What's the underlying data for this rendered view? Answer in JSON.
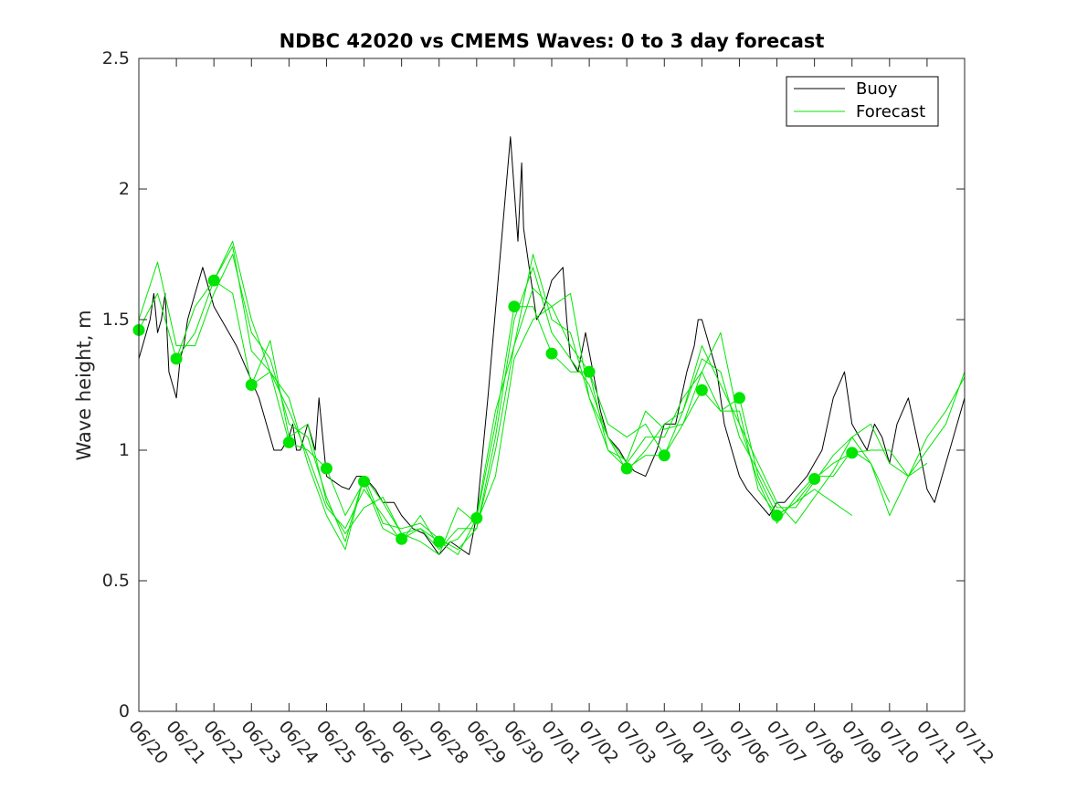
{
  "chart_data": {
    "type": "line",
    "title": "NDBC 42020 vs CMEMS Waves: 0 to 3 day forecast",
    "xlabel": "",
    "ylabel": "Wave height, m",
    "xlim": [
      "06/20",
      "07/12"
    ],
    "ylim": [
      0,
      2.5
    ],
    "grid": false,
    "legend_position": "top-right",
    "x_ticks": [
      "06/20",
      "06/21",
      "06/22",
      "06/23",
      "06/24",
      "06/25",
      "06/26",
      "06/27",
      "06/28",
      "06/29",
      "06/30",
      "07/01",
      "07/02",
      "07/03",
      "07/04",
      "07/05",
      "07/06",
      "07/07",
      "07/08",
      "07/09",
      "07/10",
      "07/11",
      "07/12"
    ],
    "y_ticks": [
      "0",
      "0.5",
      "1",
      "1.5",
      "2",
      "2.5"
    ],
    "colors": {
      "buoy": "#000000",
      "forecast": "#00e600"
    },
    "series": [
      {
        "name": "Buoy",
        "x": [
          0,
          0.3,
          0.4,
          0.5,
          0.6,
          0.7,
          0.8,
          0.9,
          1.0,
          1.1,
          1.2,
          1.3,
          1.5,
          1.7,
          2.0,
          2.6,
          2.9,
          3.2,
          3.4,
          3.6,
          3.8,
          4.0,
          4.1,
          4.2,
          4.3,
          4.5,
          4.7,
          4.8,
          5.0,
          5.2,
          5.4,
          5.6,
          5.8,
          6.0,
          6.3,
          6.5,
          6.8,
          7.0,
          7.3,
          7.6,
          8.0,
          8.3,
          8.8,
          9.0,
          9.3,
          9.6,
          9.9,
          10.1,
          10.2,
          10.25,
          10.3,
          10.4,
          10.5,
          10.6,
          10.8,
          11.0,
          11.3,
          11.4,
          11.5,
          11.7,
          11.9,
          12.1,
          12.3,
          12.5,
          12.8,
          13.0,
          13.2,
          13.5,
          13.8,
          14.0,
          14.3,
          14.6,
          14.8,
          14.9,
          15.0,
          15.2,
          15.4,
          15.5,
          15.6,
          15.8,
          16.0,
          16.2,
          16.5,
          16.8,
          17.0,
          17.2,
          17.5,
          17.8,
          18.0,
          18.2,
          18.5,
          18.8,
          19.0,
          19.2,
          19.4,
          19.6,
          19.8,
          20.0,
          20.2,
          20.5,
          20.8,
          21.0,
          21.2,
          21.4,
          21.6,
          21.8,
          22.0
        ],
        "y": [
          1.35,
          1.5,
          1.6,
          1.45,
          1.5,
          1.6,
          1.3,
          1.25,
          1.2,
          1.35,
          1.4,
          1.5,
          1.6,
          1.7,
          1.55,
          1.4,
          1.3,
          1.2,
          1.1,
          1.0,
          1.0,
          1.05,
          1.1,
          1.0,
          1.0,
          1.1,
          1.0,
          1.2,
          0.9,
          0.88,
          0.86,
          0.85,
          0.9,
          0.9,
          0.85,
          0.8,
          0.8,
          0.75,
          0.7,
          0.68,
          0.6,
          0.65,
          0.6,
          0.75,
          1.2,
          1.7,
          2.2,
          1.8,
          2.1,
          1.85,
          1.8,
          1.7,
          1.6,
          1.5,
          1.55,
          1.65,
          1.7,
          1.5,
          1.35,
          1.3,
          1.45,
          1.3,
          1.15,
          1.05,
          1.0,
          0.95,
          0.92,
          0.9,
          1.0,
          1.1,
          1.1,
          1.3,
          1.4,
          1.5,
          1.5,
          1.4,
          1.3,
          1.2,
          1.1,
          1.0,
          0.9,
          0.85,
          0.8,
          0.75,
          0.8,
          0.8,
          0.85,
          0.9,
          0.95,
          1.0,
          1.2,
          1.3,
          1.1,
          1.05,
          1.0,
          1.1,
          1.05,
          0.95,
          1.1,
          1.2,
          1.0,
          0.85,
          0.8,
          0.9,
          1.0,
          1.1,
          1.2
        ]
      },
      {
        "name": "Forecast",
        "x": [
          0,
          0.5,
          1,
          1.5,
          2,
          2.5,
          3,
          3.5,
          4,
          4.5,
          5,
          5.5,
          6,
          6.5,
          7,
          7.5,
          8,
          8.5,
          9,
          9.5,
          10,
          10.5,
          11,
          11.5,
          12,
          12.5,
          13,
          13.5,
          14,
          14.5,
          15,
          15.5,
          16,
          16.5,
          17,
          17.5,
          18,
          18.5,
          19,
          19.5,
          20,
          20.5,
          21,
          21.5,
          22
        ],
        "y": [
          1.46,
          1.6,
          1.35,
          1.45,
          1.65,
          1.6,
          1.25,
          1.3,
          1.03,
          1.0,
          0.93,
          0.75,
          0.88,
          0.7,
          0.66,
          0.7,
          0.65,
          0.6,
          0.74,
          1.1,
          1.55,
          1.55,
          1.37,
          1.3,
          1.3,
          1.0,
          0.93,
          0.98,
          0.98,
          1.1,
          1.23,
          1.15,
          1.2,
          0.9,
          0.75,
          0.8,
          0.89,
          0.95,
          0.99,
          1.0,
          1.0,
          0.9,
          1.0,
          1.1,
          1.3
        ]
      },
      {
        "name": "",
        "x": [
          0,
          0.5,
          1,
          1.5,
          2,
          2.5,
          3,
          3.5,
          4,
          4.5,
          5,
          5.5,
          6,
          6.5,
          7,
          7.5,
          8,
          8.5,
          9,
          9.5,
          10,
          10.5,
          11,
          11.5,
          12,
          12.5,
          13,
          13.5,
          14,
          14.5,
          15,
          15.5,
          16,
          16.5,
          17,
          17.5,
          18,
          18.5,
          19
        ],
        "y": [
          1.5,
          1.72,
          1.4,
          1.4,
          1.6,
          1.75,
          1.45,
          1.35,
          1.1,
          1.05,
          0.82,
          0.65,
          0.9,
          0.72,
          0.7,
          0.72,
          0.66,
          0.62,
          0.7,
          1.05,
          1.5,
          1.7,
          1.45,
          1.35,
          1.25,
          1.05,
          0.95,
          1.05,
          1.05,
          1.2,
          1.3,
          1.15,
          1.15,
          0.85,
          0.75,
          0.8,
          0.85,
          0.8,
          0.75
        ]
      },
      {
        "name": "",
        "x": [
          1,
          1.5,
          2,
          2.5,
          3,
          3.5,
          4,
          4.5,
          5,
          5.5,
          6,
          6.5,
          7,
          7.5,
          8,
          8.5,
          9,
          9.5,
          10,
          10.5,
          11,
          11.5,
          12,
          12.5,
          13,
          13.5,
          14,
          14.5,
          15,
          15.5,
          16,
          16.5,
          17,
          17.5,
          18,
          18.5,
          19,
          19.5,
          20
        ],
        "y": [
          1.35,
          1.55,
          1.65,
          1.78,
          1.38,
          1.3,
          1.15,
          0.98,
          0.78,
          0.7,
          0.85,
          0.75,
          0.65,
          0.75,
          0.63,
          0.66,
          0.75,
          1.15,
          1.4,
          1.75,
          1.5,
          1.45,
          1.2,
          1.05,
          0.92,
          1.0,
          1.1,
          1.15,
          1.4,
          1.25,
          1.1,
          0.88,
          0.72,
          0.82,
          0.9,
          0.9,
          1.0,
          0.95,
          0.8
        ]
      },
      {
        "name": "",
        "x": [
          2,
          2.5,
          3,
          3.5,
          4,
          4.5,
          5,
          5.5,
          6,
          6.5,
          7,
          7.5,
          8,
          8.5,
          9,
          9.5,
          10,
          10.5,
          11,
          11.5,
          12,
          12.5,
          13,
          13.5,
          14,
          14.5,
          15,
          15.5,
          16,
          16.5,
          17,
          17.5,
          18,
          18.5,
          19,
          19.5,
          20,
          20.5,
          21
        ],
        "y": [
          1.65,
          1.8,
          1.5,
          1.3,
          1.2,
          0.95,
          0.75,
          0.62,
          0.9,
          0.8,
          0.68,
          0.7,
          0.62,
          0.7,
          0.7,
          1.0,
          1.4,
          1.62,
          1.55,
          1.4,
          1.3,
          1.1,
          1.05,
          1.1,
          0.98,
          1.15,
          1.35,
          1.3,
          1.05,
          0.92,
          0.78,
          0.78,
          0.88,
          0.98,
          1.05,
          1.1,
          0.95,
          0.9,
          0.95
        ]
      },
      {
        "name": "",
        "x": [
          3,
          3.5,
          4,
          4.5,
          5,
          5.5,
          6,
          6.5,
          7,
          7.5,
          8,
          8.5,
          9,
          9.5,
          10,
          10.5,
          11,
          11.5,
          12,
          12.5,
          13,
          13.5,
          14,
          14.5,
          15,
          15.5,
          16,
          16.5,
          17,
          17.5,
          18,
          18.5,
          19,
          19.5,
          20,
          20.5,
          21,
          21.5,
          22
        ],
        "y": [
          1.25,
          1.42,
          1.05,
          1.1,
          0.8,
          0.68,
          0.78,
          0.82,
          0.68,
          0.65,
          0.6,
          0.78,
          0.72,
          0.9,
          1.35,
          1.5,
          1.55,
          1.6,
          1.2,
          1.0,
          0.96,
          1.15,
          1.08,
          1.1,
          1.3,
          1.45,
          1.1,
          0.95,
          0.8,
          0.72,
          0.82,
          0.92,
          1.05,
          0.95,
          0.75,
          0.9,
          1.05,
          1.15,
          1.28
        ]
      }
    ],
    "markers": {
      "name": "Forecast",
      "x": [
        0,
        1,
        2,
        3,
        4,
        5,
        6,
        7,
        8,
        9,
        10,
        11,
        12,
        13,
        14,
        15,
        16,
        17,
        18,
        19
      ],
      "y": [
        1.46,
        1.35,
        1.65,
        1.25,
        1.03,
        0.93,
        0.88,
        0.66,
        0.65,
        0.74,
        1.55,
        1.37,
        1.3,
        0.93,
        0.98,
        1.23,
        1.2,
        0.75,
        0.89,
        0.99
      ]
    }
  }
}
